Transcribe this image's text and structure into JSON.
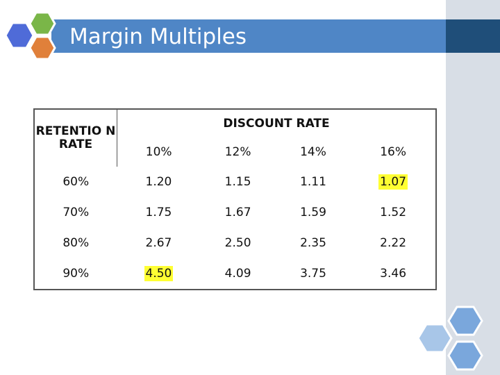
{
  "slide": {
    "title": "Margin Multiples"
  },
  "table": {
    "retention_header": "RETENTIO N RATE",
    "discount_header": "DISCOUNT RATE",
    "discount_rates": [
      "10%",
      "12%",
      "14%",
      "16%"
    ],
    "rows": [
      {
        "retention": "60%",
        "values": [
          "1.20",
          "1.15",
          "1.11",
          "1.07"
        ]
      },
      {
        "retention": "70%",
        "values": [
          "1.75",
          "1.67",
          "1.59",
          "1.52"
        ]
      },
      {
        "retention": "80%",
        "values": [
          "2.67",
          "2.50",
          "2.35",
          "2.22"
        ]
      },
      {
        "retention": "90%",
        "values": [
          "4.50",
          "4.09",
          "3.75",
          "3.46"
        ]
      }
    ],
    "highlight_color": "#ffff33"
  },
  "colors": {
    "title_bar": "#4f86c6",
    "title_bar_dark": "#1f4e79",
    "side_panel": "#d8dee6",
    "hex_green": "#7ab648",
    "hex_blue": "#4f6bd8",
    "hex_orange": "#e0803a",
    "hex_light_blue": "#a8c6e8",
    "hex_mid_blue": "#7aa7dc"
  }
}
